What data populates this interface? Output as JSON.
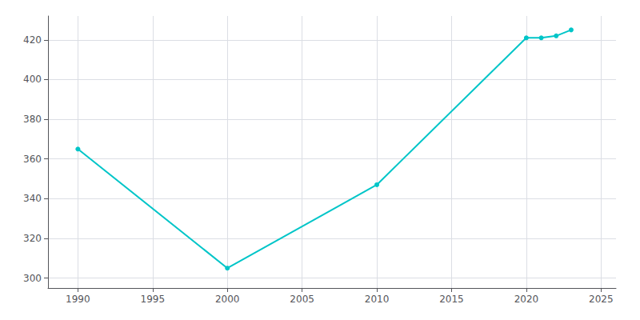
{
  "chart_data": {
    "type": "line",
    "x": [
      1990,
      2000,
      2010,
      2020,
      2021,
      2022,
      2023
    ],
    "values": [
      365,
      305,
      347,
      421,
      421,
      422,
      425
    ],
    "color": "#00C5C8",
    "marker": "circle",
    "xlim": [
      1988,
      2026
    ],
    "ylim": [
      295,
      432
    ],
    "xticks": [
      1990,
      1995,
      2000,
      2005,
      2010,
      2015,
      2020,
      2025
    ],
    "yticks": [
      300,
      320,
      340,
      360,
      380,
      400,
      420
    ],
    "grid": true
  }
}
